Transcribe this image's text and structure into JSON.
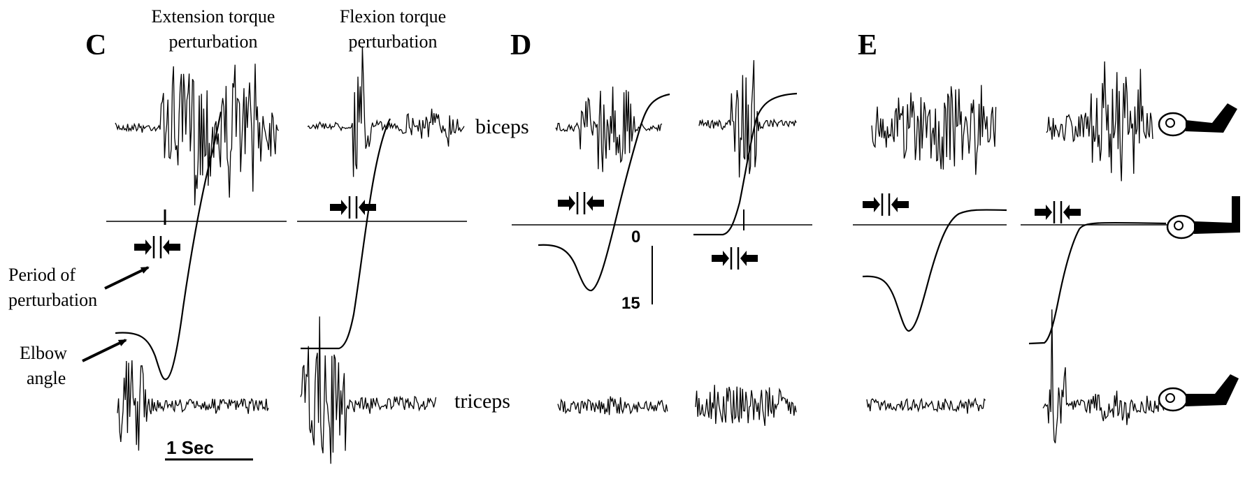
{
  "figure": {
    "panel_labels": {
      "c": "C",
      "d": "D",
      "e": "E"
    },
    "column_headers": {
      "extension": [
        "Extension torque",
        "perturbation"
      ],
      "flexion": [
        "Flexion torque",
        "perturbation"
      ]
    },
    "muscle_labels": {
      "biceps": "biceps",
      "triceps": "triceps"
    },
    "annotations": {
      "period": [
        "Period of",
        "perturbation"
      ],
      "elbow": [
        "Elbow",
        "angle"
      ]
    },
    "angle_scale": {
      "top": "0",
      "bottom": "15"
    },
    "time_scale": "1 Sec"
  },
  "icons": {
    "arm_posture": [
      "arm-flexed-icon",
      "arm-horizontal-icon",
      "arm-extended-icon"
    ],
    "markers": "perturbation-arrows-icon"
  }
}
